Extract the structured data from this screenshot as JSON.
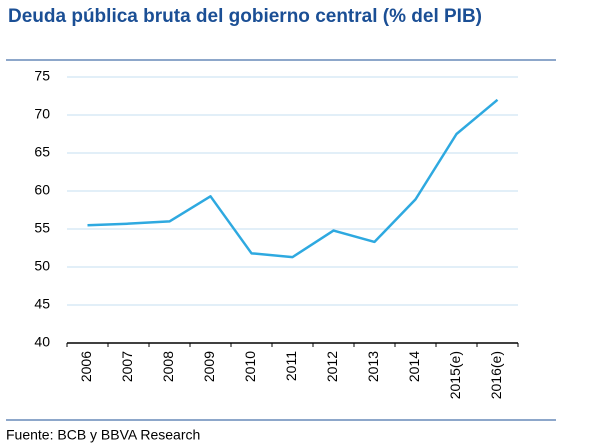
{
  "chart_data": {
    "type": "line",
    "title": "Deuda pública bruta del gobierno central (% del PIB)",
    "categories": [
      "2006",
      "2007",
      "2008",
      "2009",
      "2010",
      "2011",
      "2012",
      "2013",
      "2014",
      "2015(e)",
      "2016(e)"
    ],
    "values": [
      55.5,
      55.7,
      56.0,
      59.3,
      51.8,
      51.3,
      54.8,
      53.3,
      58.9,
      67.5,
      72.0
    ],
    "color": "#2ea9e0",
    "ylim": [
      40,
      75
    ],
    "yticks": [
      40,
      45,
      50,
      55,
      60,
      65,
      70,
      75
    ],
    "grid": true,
    "source": "Fuente: BCB y BBVA Research"
  }
}
